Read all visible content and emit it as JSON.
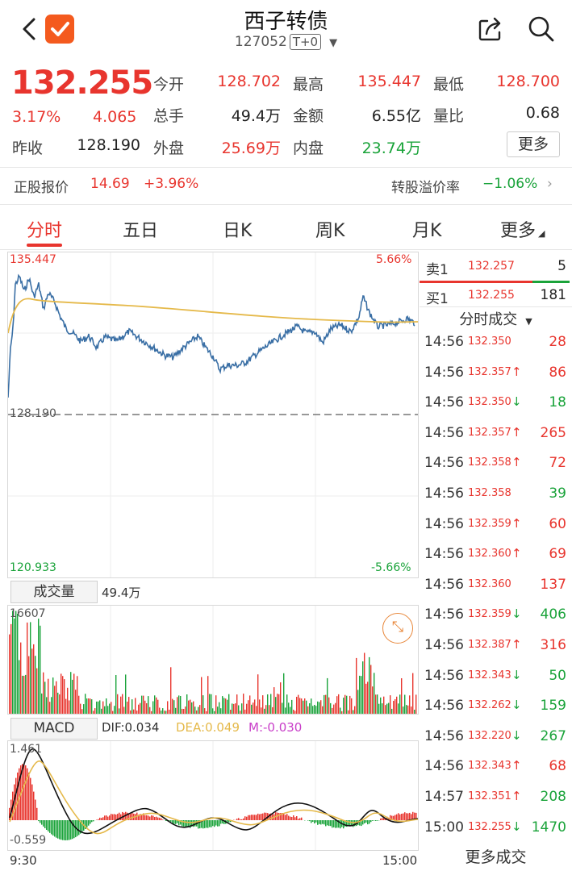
{
  "header": {
    "title": "西子转债",
    "code": "127052",
    "badge": "T+0"
  },
  "quote": {
    "price": "132.255",
    "change_pct": "3.17%",
    "change_amt": "4.065",
    "prev_close_label": "昨收",
    "prev_close": "128.190",
    "open_label": "今开",
    "open": "128.702",
    "high_label": "最高",
    "high": "135.447",
    "low_label": "最低",
    "low": "128.700",
    "volume_label": "总手",
    "volume": "49.4万",
    "amount_label": "金额",
    "amount": "6.55亿",
    "ratio_label": "量比",
    "ratio": "0.68",
    "outer_label": "外盘",
    "outer": "25.69万",
    "inner_label": "内盘",
    "inner": "23.74万",
    "more_label": "更多"
  },
  "conversion": {
    "stock_label": "正股报价",
    "stock_price": "14.69",
    "stock_change": "+3.96%",
    "premium_label": "转股溢价率",
    "premium": "−1.06%"
  },
  "tabs": [
    "分时",
    "五日",
    "日K",
    "周K",
    "月K",
    "更多"
  ],
  "chart": {
    "top_price": "135.447",
    "top_pct": "5.66%",
    "base_price": "128.190",
    "bottom_price": "120.933",
    "bottom_pct": "-5.66%",
    "volume_label": "成交量",
    "volume_value": "49.4万",
    "volume_max": "16607",
    "macd_label": "MACD",
    "dif": "DIF:0.034",
    "dea": "DEA:0.049",
    "m": "M:-0.030",
    "macd_top": "1.461",
    "macd_bottom": "-0.559",
    "time_start": "9:30",
    "time_end": "15:00",
    "colors": {
      "price_line": "#3a6fa5",
      "avg_line": "#e5b94a",
      "up": "#e8352e",
      "down": "#1aa33a"
    }
  },
  "orderbook": {
    "sell_label": "卖1",
    "sell_price": "132.257",
    "sell_vol": "5",
    "buy_label": "买1",
    "buy_price": "132.255",
    "buy_vol": "181",
    "ticks_label": "分时成交"
  },
  "ticks": [
    {
      "time": "14:56",
      "price": "132.350",
      "arrow": "",
      "vol": "28",
      "dir": "up"
    },
    {
      "time": "14:56",
      "price": "132.357",
      "arrow": "↑",
      "vol": "86",
      "dir": "up"
    },
    {
      "time": "14:56",
      "price": "132.350",
      "arrow": "↓",
      "vol": "18",
      "dir": "down"
    },
    {
      "time": "14:56",
      "price": "132.357",
      "arrow": "↑",
      "vol": "265",
      "dir": "up"
    },
    {
      "time": "14:56",
      "price": "132.358",
      "arrow": "↑",
      "vol": "72",
      "dir": "up"
    },
    {
      "time": "14:56",
      "price": "132.358",
      "arrow": "",
      "vol": "39",
      "dir": "down"
    },
    {
      "time": "14:56",
      "price": "132.359",
      "arrow": "↑",
      "vol": "60",
      "dir": "up"
    },
    {
      "time": "14:56",
      "price": "132.360",
      "arrow": "↑",
      "vol": "69",
      "dir": "up"
    },
    {
      "time": "14:56",
      "price": "132.360",
      "arrow": "",
      "vol": "137",
      "dir": "up"
    },
    {
      "time": "14:56",
      "price": "132.359",
      "arrow": "↓",
      "vol": "406",
      "dir": "down"
    },
    {
      "time": "14:56",
      "price": "132.387",
      "arrow": "↑",
      "vol": "316",
      "dir": "up"
    },
    {
      "time": "14:56",
      "price": "132.343",
      "arrow": "↓",
      "vol": "50",
      "dir": "down"
    },
    {
      "time": "14:56",
      "price": "132.262",
      "arrow": "↓",
      "vol": "159",
      "dir": "down"
    },
    {
      "time": "14:56",
      "price": "132.220",
      "arrow": "↓",
      "vol": "267",
      "dir": "down"
    },
    {
      "time": "14:56",
      "price": "132.343",
      "arrow": "↑",
      "vol": "68",
      "dir": "up"
    },
    {
      "time": "14:57",
      "price": "132.351",
      "arrow": "↑",
      "vol": "208",
      "dir": "down"
    },
    {
      "time": "15:00",
      "price": "132.255",
      "arrow": "↓",
      "vol": "1470",
      "dir": "down"
    }
  ],
  "more_trades": "更多成交"
}
